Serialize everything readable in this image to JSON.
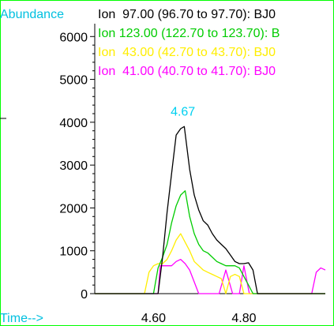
{
  "chart_data": {
    "type": "line",
    "ylabel": "Abundance",
    "xlabel": "Time-->",
    "xlim": [
      4.47,
      4.98
    ],
    "ylim": [
      0,
      6300
    ],
    "x_ticks": [
      4.6,
      4.8
    ],
    "x_tick_labels": [
      "4.60",
      "4.80"
    ],
    "y_ticks": [
      0,
      1000,
      2000,
      3000,
      4000,
      5000,
      6000
    ],
    "y_tick_labels": [
      "0",
      "1000",
      "2000",
      "3000",
      "4000",
      "5000",
      "6000"
    ],
    "grid": false,
    "legend_position": "top",
    "annotation": {
      "text": "4.67",
      "x": 4.665,
      "y": 4150,
      "color": "#00d0f0"
    },
    "series": [
      {
        "name": "Ion  97.00 (96.70 to 97.70): BJ0",
        "color": "#000000",
        "x": [
          4.47,
          4.61,
          4.62,
          4.63,
          4.64,
          4.65,
          4.66,
          4.668,
          4.68,
          4.69,
          4.7,
          4.71,
          4.72,
          4.73,
          4.74,
          4.75,
          4.76,
          4.77,
          4.78,
          4.79,
          4.8,
          4.81,
          4.82,
          4.83,
          4.98
        ],
        "y": [
          0,
          0,
          850,
          1900,
          2800,
          3700,
          3850,
          3900,
          2900,
          2300,
          1950,
          1700,
          1600,
          1400,
          1250,
          1150,
          1050,
          900,
          750,
          700,
          700,
          720,
          550,
          0,
          0
        ]
      },
      {
        "name": "Ion 123.00 (122.70 to 123.70): B",
        "color": "#00cc00",
        "x": [
          4.47,
          4.6,
          4.61,
          4.62,
          4.63,
          4.64,
          4.65,
          4.66,
          4.67,
          4.68,
          4.69,
          4.7,
          4.71,
          4.72,
          4.73,
          4.74,
          4.75,
          4.76,
          4.77,
          4.78,
          4.79,
          4.8,
          4.81,
          4.82,
          4.98
        ],
        "y": [
          0,
          0,
          600,
          850,
          1150,
          1650,
          2050,
          2300,
          2400,
          1800,
          1400,
          1150,
          1000,
          950,
          850,
          750,
          700,
          650,
          650,
          650,
          600,
          400,
          200,
          0,
          0
        ]
      },
      {
        "name": "Ion  43.00 (42.70 to 43.70): BJ0",
        "color": "#ffee00",
        "x": [
          4.47,
          4.58,
          4.59,
          4.6,
          4.61,
          4.62,
          4.63,
          4.64,
          4.65,
          4.66,
          4.67,
          4.68,
          4.69,
          4.7,
          4.71,
          4.72,
          4.73,
          4.74,
          4.75,
          4.76,
          4.77,
          4.78,
          4.79,
          4.8,
          4.98
        ],
        "y": [
          0,
          0,
          500,
          650,
          700,
          700,
          800,
          1000,
          1250,
          1400,
          1200,
          1000,
          750,
          650,
          550,
          500,
          450,
          400,
          350,
          0,
          400,
          450,
          400,
          0,
          0
        ]
      },
      {
        "name": "Ion  41.00 (40.70 to 41.70): BJ0",
        "color": "#ff00ff",
        "x": [
          4.47,
          4.61,
          4.615,
          4.64,
          4.65,
          4.66,
          4.67,
          4.68,
          4.7,
          4.73,
          4.745,
          4.76,
          4.775,
          4.79,
          4.8,
          4.812,
          4.95,
          4.96,
          4.97,
          4.98
        ],
        "y": [
          0,
          0,
          650,
          650,
          750,
          800,
          700,
          550,
          0,
          0,
          0,
          550,
          0,
          0,
          650,
          0,
          0,
          500,
          600,
          550
        ]
      }
    ]
  }
}
